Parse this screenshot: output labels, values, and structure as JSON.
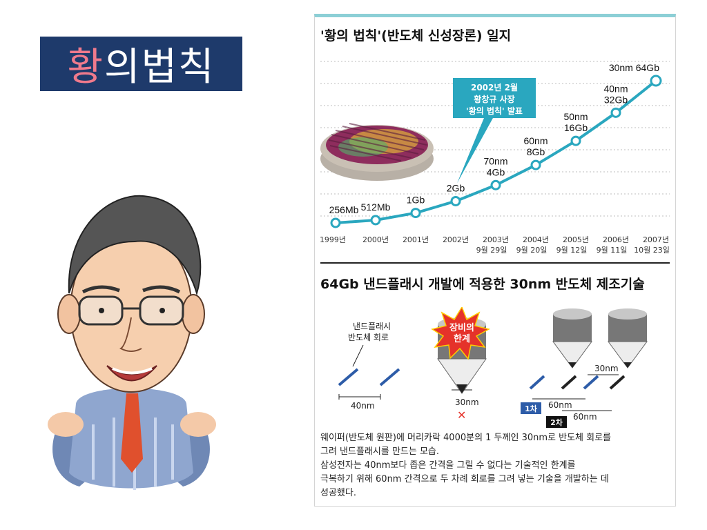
{
  "banner": {
    "first_char": "황",
    "rest": "의법칙"
  },
  "chart_data": {
    "type": "line",
    "title": "'황의 법칙'(반도체 신성장론) 일지",
    "points": [
      {
        "date": [
          "1999년"
        ],
        "label": [
          "256Mb"
        ],
        "value_gb": 0.256
      },
      {
        "date": [
          "2000년"
        ],
        "label": [
          "512Mb"
        ],
        "value_gb": 0.512
      },
      {
        "date": [
          "2001년"
        ],
        "label": [
          "1Gb"
        ],
        "value_gb": 1
      },
      {
        "date": [
          "2002년"
        ],
        "label": [
          "2Gb"
        ],
        "value_gb": 2
      },
      {
        "date": [
          "2003년",
          "9월 29일"
        ],
        "label": [
          "70nm",
          "4Gb"
        ],
        "value_gb": 4
      },
      {
        "date": [
          "2004년",
          "9월 20일"
        ],
        "label": [
          "60nm",
          "8Gb"
        ],
        "value_gb": 8
      },
      {
        "date": [
          "2005년",
          "9월 12일"
        ],
        "label": [
          "50nm",
          "16Gb"
        ],
        "value_gb": 16
      },
      {
        "date": [
          "2006년",
          "9월 11일"
        ],
        "label": [
          "40nm",
          "32Gb"
        ],
        "value_gb": 32
      },
      {
        "date": [
          "2007년",
          "10월 23일"
        ],
        "label": [
          "30nm 64Gb"
        ],
        "value_gb": 64
      }
    ],
    "callout": [
      "2002년 2월",
      "황창규 사장",
      "'황의 법칙' 발표"
    ],
    "colors": {
      "line": "#2aa7bf",
      "marker_fill": "#ffffff",
      "callout_bg": "#2aa7bf"
    }
  },
  "section2": {
    "title": "64Gb 낸드플래시 개발에 적용한 30nm 반도체 제조기술",
    "left_label": [
      "낸드플래시",
      "반도체 회로"
    ],
    "left_dim": "40nm",
    "mid_burst": [
      "장비의",
      "한계"
    ],
    "mid_dim": "30nm",
    "right_top_dim": "30nm",
    "right_mid_dim": "60nm",
    "right_low_dim": "60nm",
    "badge1": "1차",
    "badge2": "2차",
    "description": [
      "웨이퍼(반도체 원판)에 머리카락 4000분의 1 두께인 30nm로 반도체 회로를",
      "그려 낸드플래시를 만드는 모습.",
      "삼성전자는 40nm보다 좁은 간격을 그릴 수 없다는 기술적인 한계를",
      "극복하기 위해 60nm 간격으로 두 차례 회로를 그려 넣는 기술을 개발하는 데",
      "성공했다."
    ]
  }
}
